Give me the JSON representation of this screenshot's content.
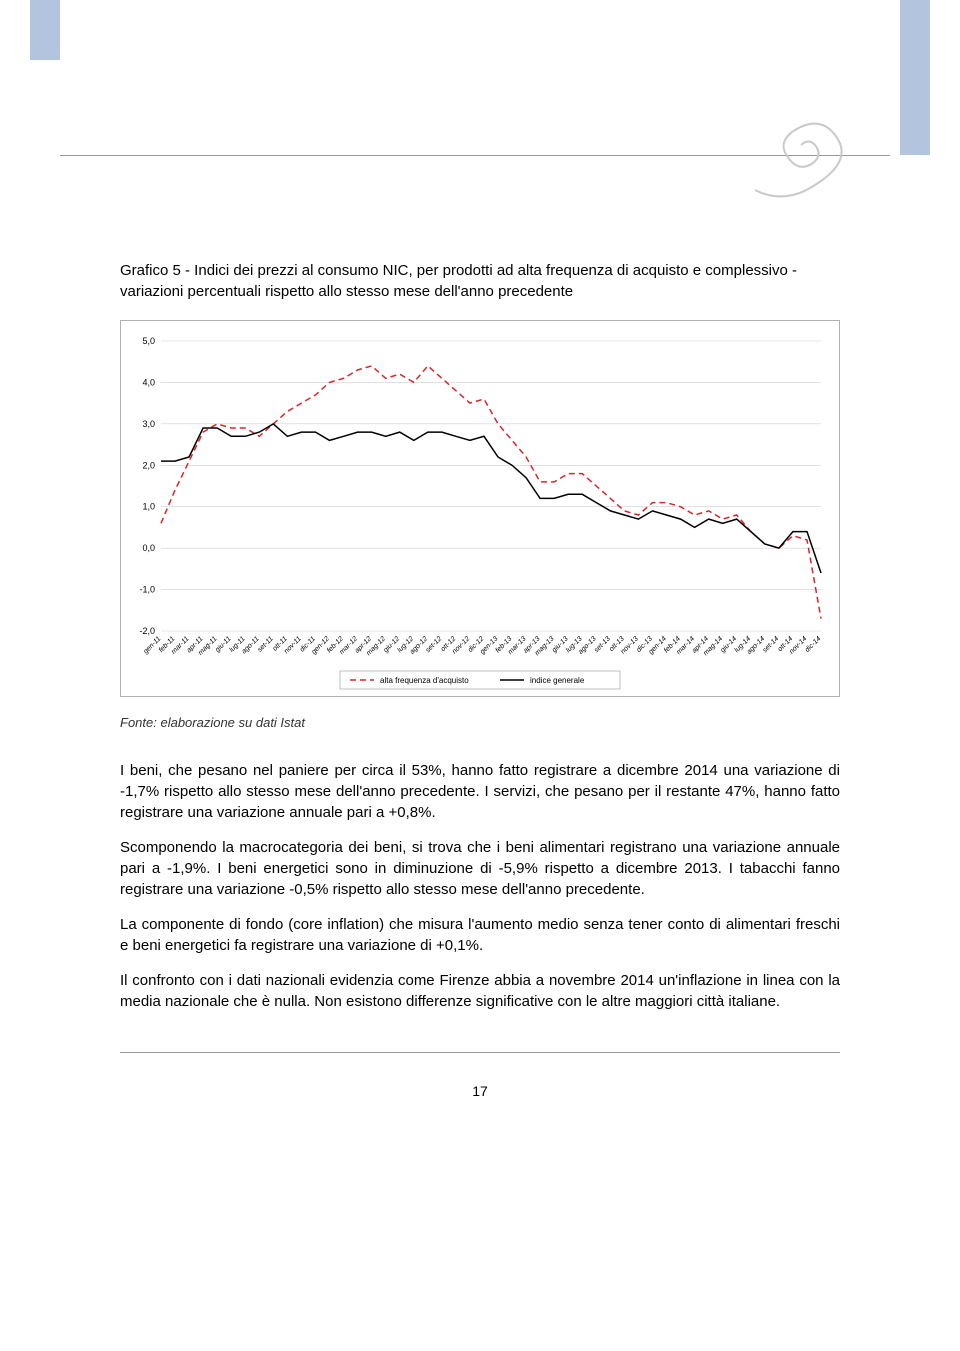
{
  "chart": {
    "title": "Grafico 5 - Indici dei prezzi al consumo NIC, per prodotti ad alta frequenza di acquisto e complessivo - variazioni percentuali rispetto allo stesso mese dell'anno precedente",
    "type": "line",
    "ylim": [
      -2.0,
      5.0
    ],
    "ytick_step": 1.0,
    "yticks": [
      "5,0",
      "4,0",
      "3,0",
      "2,0",
      "1,0",
      "0,0",
      "-1,0",
      "-2,0"
    ],
    "xlabels": [
      "gen-11",
      "feb-11",
      "mar-11",
      "apr-11",
      "mag-11",
      "giu-11",
      "lug-11",
      "ago-11",
      "set-11",
      "ott-11",
      "nov-11",
      "dic-11",
      "gen-12",
      "feb-12",
      "mar-12",
      "apr-12",
      "mag-12",
      "giu-12",
      "lug-12",
      "ago-12",
      "set-12",
      "ott-12",
      "nov-12",
      "dic-12",
      "gen-13",
      "feb-13",
      "mar-13",
      "apr-13",
      "mag-13",
      "giu-13",
      "lug-13",
      "ago-13",
      "set-13",
      "ott-13",
      "nov-13",
      "dic-13",
      "gen-14",
      "feb-14",
      "mar-14",
      "apr-14",
      "mag-14",
      "giu-14",
      "lug-14",
      "ago-14",
      "set-14",
      "ott-14",
      "nov-14",
      "dic-14"
    ],
    "series": [
      {
        "name": "alta frequenza d'acquisto",
        "color": "#d62728",
        "dash": "6,4",
        "width": 1.5,
        "values": [
          0.6,
          1.4,
          2.1,
          2.8,
          3.0,
          2.9,
          2.9,
          2.7,
          3.0,
          3.3,
          3.5,
          3.7,
          4.0,
          4.1,
          4.3,
          4.4,
          4.1,
          4.2,
          4.0,
          4.4,
          4.1,
          3.8,
          3.5,
          3.6,
          3.0,
          2.6,
          2.2,
          1.6,
          1.6,
          1.8,
          1.8,
          1.5,
          1.2,
          0.9,
          0.8,
          1.1,
          1.1,
          1.0,
          0.8,
          0.9,
          0.7,
          0.8,
          0.4,
          0.1,
          0.0,
          0.3,
          0.2,
          -1.7
        ]
      },
      {
        "name": "indice generale",
        "color": "#000000",
        "dash": "none",
        "width": 1.5,
        "values": [
          2.1,
          2.1,
          2.2,
          2.9,
          2.9,
          2.7,
          2.7,
          2.8,
          3.0,
          2.7,
          2.8,
          2.8,
          2.6,
          2.7,
          2.8,
          2.8,
          2.7,
          2.8,
          2.6,
          2.8,
          2.8,
          2.7,
          2.6,
          2.7,
          2.2,
          2.0,
          1.7,
          1.2,
          1.2,
          1.3,
          1.3,
          1.1,
          0.9,
          0.8,
          0.7,
          0.9,
          0.8,
          0.7,
          0.5,
          0.7,
          0.6,
          0.7,
          0.4,
          0.1,
          0.0,
          0.4,
          0.4,
          -0.6
        ]
      }
    ],
    "border_color": "#b0b0b0",
    "grid_color": "#d0d0d0",
    "background": "#ffffff",
    "label_fontsize": 7,
    "ylabel_fontsize": 9,
    "legend_bg": "#ffffff",
    "legend_border": "#b0b0b0"
  },
  "source": "Fonte: elaborazione su dati Istat",
  "paragraphs": [
    "I beni, che pesano nel paniere per circa il 53%, hanno fatto registrare a dicembre 2014 una variazione di -1,7% rispetto allo stesso mese dell'anno precedente. I servizi, che pesano per il restante 47%, hanno fatto registrare una variazione annuale pari a +0,8%.",
    "Scomponendo la macrocategoria dei beni, si trova che i beni alimentari registrano una variazione annuale pari a -1,9%. I beni energetici sono in diminuzione di -5,9% rispetto a dicembre 2013. I tabacchi fanno registrare una variazione -0,5% rispetto allo stesso mese dell'anno precedente.",
    "La componente di fondo (core inflation) che misura l'aumento medio senza tener conto di alimentari freschi e beni energetici fa registrare una variazione di +0,1%.",
    "Il confronto con i dati nazionali evidenzia come Firenze abbia a novembre 2014 un'inflazione in linea con la media nazionale che è nulla. Non esistono differenze significative con le altre maggiori città italiane."
  ],
  "page_number": "17",
  "accent_color": "#b3c5de",
  "swirl_color": "#c9c9c9"
}
